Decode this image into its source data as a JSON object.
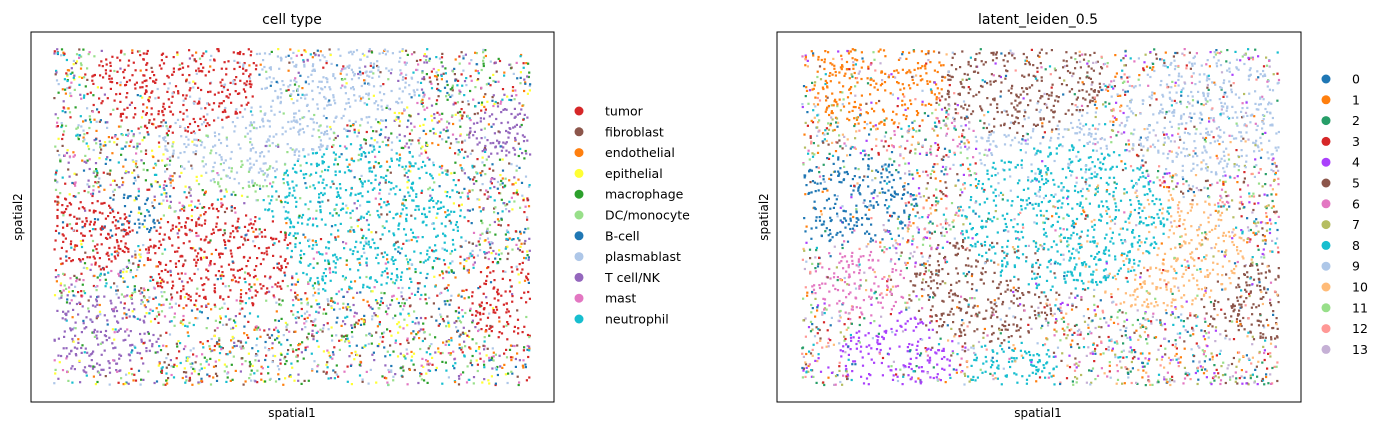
{
  "chart_data": [
    {
      "type": "scatter",
      "title": "cell type",
      "xlabel": "spatial1",
      "ylabel": "spatial2",
      "grid": false,
      "legend_position": "right",
      "series": [
        {
          "name": "tumor",
          "color": "#d62728"
        },
        {
          "name": "fibroblast",
          "color": "#8c564b"
        },
        {
          "name": "endothelial",
          "color": "#ff7f0e"
        },
        {
          "name": "epithelial",
          "color": "#ffff33"
        },
        {
          "name": "macrophage",
          "color": "#2ca02c"
        },
        {
          "name": "DC/monocyte",
          "color": "#98df8a"
        },
        {
          "name": "B-cell",
          "color": "#1f77b4"
        },
        {
          "name": "plasmablast",
          "color": "#aec7e8"
        },
        {
          "name": "T cell/NK",
          "color": "#9467bd"
        },
        {
          "name": "mast",
          "color": "#e377c2"
        },
        {
          "name": "neutrophil",
          "color": "#17becf"
        }
      ]
    },
    {
      "type": "scatter",
      "title": "latent_leiden_0.5",
      "xlabel": "spatial1",
      "ylabel": "spatial2",
      "grid": false,
      "legend_position": "right",
      "series": [
        {
          "name": "0",
          "color": "#1f77b4"
        },
        {
          "name": "1",
          "color": "#ff7f0e"
        },
        {
          "name": "2",
          "color": "#279e68"
        },
        {
          "name": "3",
          "color": "#d62728"
        },
        {
          "name": "4",
          "color": "#aa40fc"
        },
        {
          "name": "5",
          "color": "#8c564b"
        },
        {
          "name": "6",
          "color": "#e377c2"
        },
        {
          "name": "7",
          "color": "#b5bd61"
        },
        {
          "name": "8",
          "color": "#17becf"
        },
        {
          "name": "9",
          "color": "#aec7e8"
        },
        {
          "name": "10",
          "color": "#ffbb78"
        },
        {
          "name": "11",
          "color": "#98df8a"
        },
        {
          "name": "12",
          "color": "#ff9896"
        },
        {
          "name": "13",
          "color": "#c5b0d5"
        }
      ]
    }
  ]
}
